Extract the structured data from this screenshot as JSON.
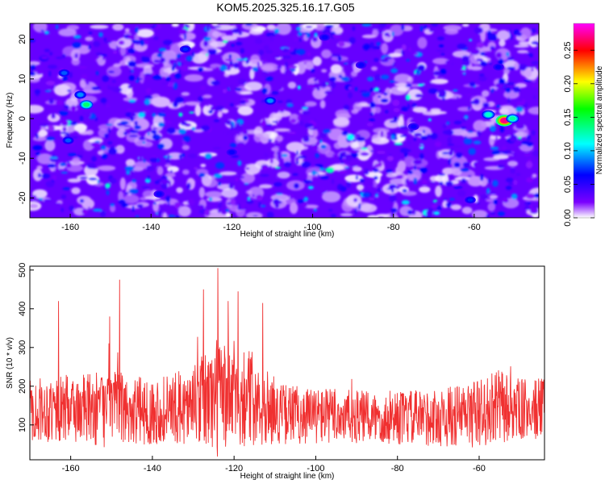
{
  "title": "KOM5.2025.325.16.17.G05",
  "chart_data": [
    {
      "type": "heatmap",
      "title": "KOM5.2025.325.16.17.G05",
      "xlabel": "Height of straight line (km)",
      "ylabel": "Frequency (Hz)",
      "xlim": [
        -170,
        -44
      ],
      "ylim": [
        -25,
        24
      ],
      "x_ticks": [
        "-160",
        "-140",
        "-120",
        "-100",
        "-80",
        "-60"
      ],
      "y_ticks": [
        "-20",
        "-10",
        "0",
        "10",
        "20"
      ],
      "colorbar": {
        "label": "Normalized spectral amplitude",
        "range": [
          0,
          0.29
        ],
        "ticks": [
          "0.00",
          "0.05",
          "0.10",
          "0.15",
          "0.20",
          "0.25"
        ],
        "colormap": [
          "#ffffff",
          "#7b00ff",
          "#0000ff",
          "#00ffff",
          "#00ff00",
          "#ffff00",
          "#ff0000",
          "#ff00ff"
        ]
      },
      "background_level": 0.03,
      "hotspots": [
        {
          "x": -52.5,
          "y": -0.5,
          "value": 0.27
        },
        {
          "x": -50.5,
          "y": 0.0,
          "value": 0.13
        },
        {
          "x": -56.5,
          "y": 1.0,
          "value": 0.12
        },
        {
          "x": -156.0,
          "y": 3.5,
          "value": 0.14
        },
        {
          "x": -157.5,
          "y": 6.0,
          "value": 0.09
        },
        {
          "x": -161.5,
          "y": 11.5,
          "value": 0.08
        },
        {
          "x": -160.5,
          "y": -5.5,
          "value": 0.08
        },
        {
          "x": -110.5,
          "y": 4.5,
          "value": 0.09
        },
        {
          "x": -131.5,
          "y": 17.5,
          "value": 0.07
        },
        {
          "x": -61.0,
          "y": -20.5,
          "value": 0.07
        },
        {
          "x": -88.0,
          "y": 13.5,
          "value": 0.06
        },
        {
          "x": -54.0,
          "y": 13.0,
          "value": 0.06
        },
        {
          "x": -75.0,
          "y": -2.0,
          "value": 0.06
        },
        {
          "x": -138.0,
          "y": -19.0,
          "value": 0.06
        },
        {
          "x": -97.0,
          "y": 20.5,
          "value": 0.06
        },
        {
          "x": -120.0,
          "y": -8.5,
          "value": 0.06
        }
      ]
    },
    {
      "type": "line",
      "xlabel": "Height of straight line (km)",
      "ylabel": "SNR (10 * v/v)",
      "xlim": [
        -170,
        -44
      ],
      "ylim": [
        10,
        510
      ],
      "x_ticks": [
        "-160",
        "-140",
        "-120",
        "-100",
        "-80",
        "-60"
      ],
      "y_ticks": [
        "100",
        "200",
        "300",
        "400",
        "500"
      ],
      "color": "#f03030",
      "envelope": {
        "x": [
          -170,
          -160,
          -150,
          -140,
          -130,
          -124,
          -120,
          -114,
          -110,
          -100,
          -90,
          -80,
          -70,
          -60,
          -55,
          -50,
          -44
        ],
        "mean": [
          140,
          140,
          140,
          135,
          150,
          175,
          180,
          165,
          130,
          125,
          120,
          118,
          118,
          130,
          145,
          140,
          140
        ],
        "amplitude": [
          80,
          90,
          100,
          85,
          100,
          160,
          140,
          120,
          80,
          75,
          70,
          70,
          75,
          90,
          100,
          80,
          80
        ]
      },
      "peaks": [
        {
          "x": -163.0,
          "y": 420
        },
        {
          "x": -148.0,
          "y": 475
        },
        {
          "x": -124.0,
          "y": 505
        },
        {
          "x": -127.5,
          "y": 450
        },
        {
          "x": -119.0,
          "y": 445
        },
        {
          "x": -121.5,
          "y": 420
        },
        {
          "x": -113.0,
          "y": 415
        },
        {
          "x": -150.5,
          "y": 380
        }
      ]
    }
  ]
}
